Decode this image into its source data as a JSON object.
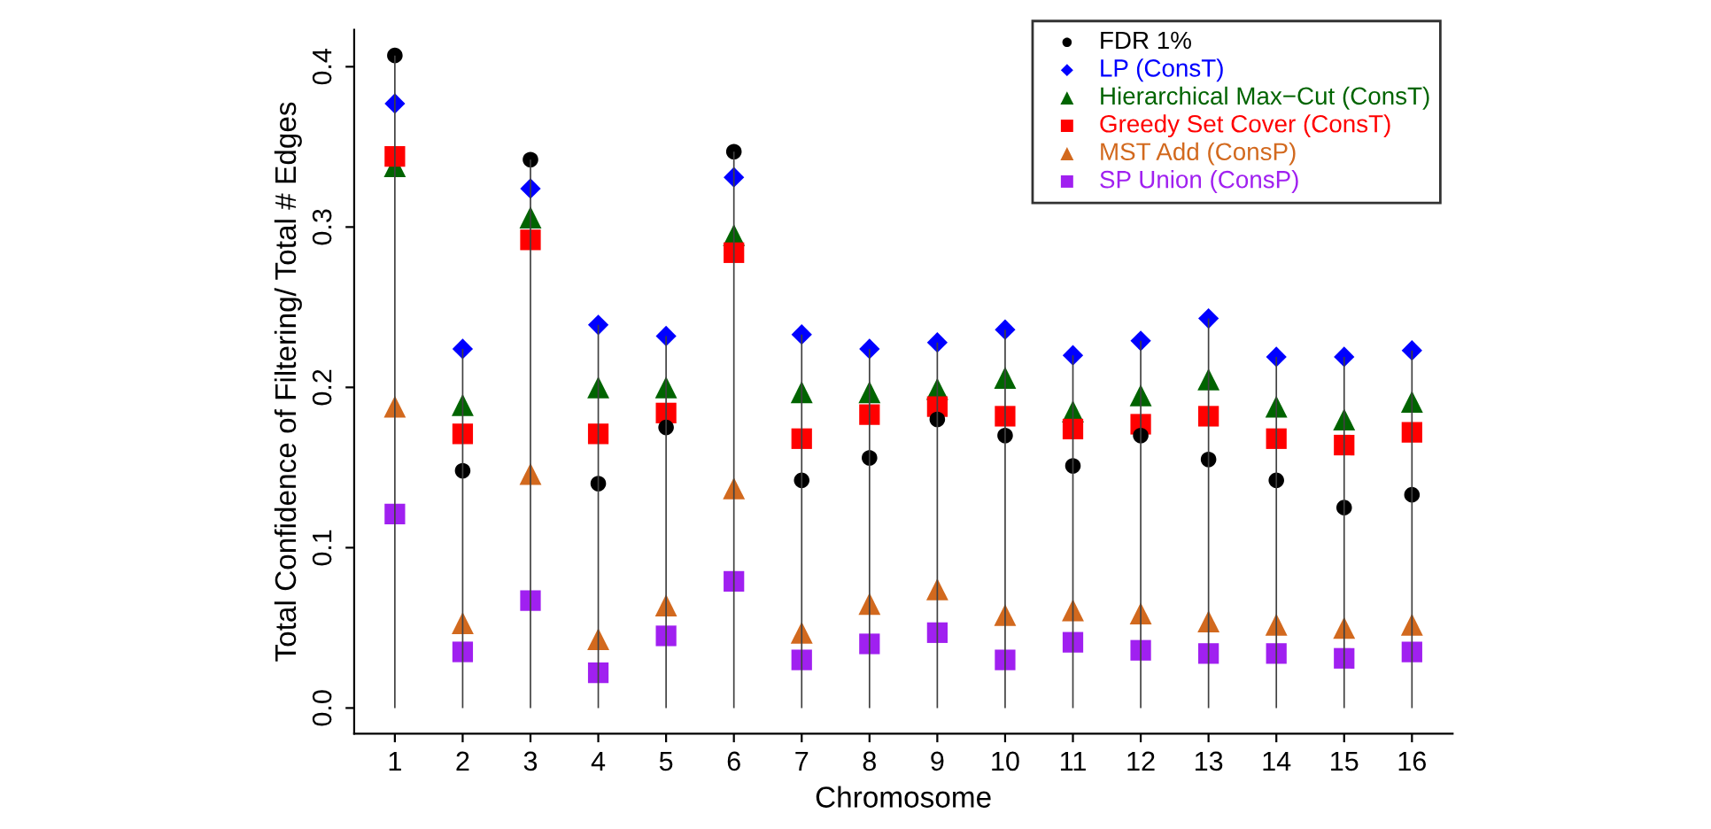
{
  "chart_data": {
    "type": "scatter",
    "xlabel": "Chromosome",
    "ylabel": "Total Confidence of Filtering/ Total # Edges",
    "categories": [
      "1",
      "2",
      "3",
      "4",
      "5",
      "6",
      "7",
      "8",
      "9",
      "10",
      "11",
      "12",
      "13",
      "14",
      "15",
      "16"
    ],
    "ylim": [
      -0.016,
      0.423
    ],
    "yticks": [
      {
        "value": 0,
        "label": "0.0"
      },
      0.1,
      0.2,
      0.3,
      0.4
    ],
    "grid": false,
    "legend": "top right",
    "series": [
      {
        "type": "bar",
        "color": "#404040",
        "values": [
          0.407,
          0.224,
          0.342,
          0.239,
          0.232,
          0.347,
          0.233,
          0.224,
          0.228,
          0.236,
          0.22,
          0.229,
          0.243,
          0.219,
          0.219,
          0.223
        ]
      },
      {
        "name": "FDR 1%",
        "color": "#000000",
        "marker": "circle",
        "values": [
          0.407,
          0.148,
          0.342,
          0.14,
          0.175,
          0.347,
          0.142,
          0.156,
          0.18,
          0.17,
          0.151,
          0.17,
          0.155,
          0.142,
          0.125,
          0.133
        ]
      },
      {
        "name": "LP (ConsT)",
        "color": "#0000ff",
        "marker": "diamond",
        "values": [
          0.377,
          0.224,
          0.324,
          0.239,
          0.232,
          0.331,
          0.233,
          0.224,
          0.228,
          0.236,
          0.22,
          0.229,
          0.243,
          0.219,
          0.219,
          0.223
        ]
      },
      {
        "name": "Hierarchical Max−Cut (ConsT)",
        "color": "#006400",
        "marker": "triangle",
        "values": [
          0.338,
          0.189,
          0.306,
          0.2,
          0.2,
          0.295,
          0.197,
          0.197,
          0.199,
          0.206,
          0.185,
          0.195,
          0.205,
          0.188,
          0.18,
          0.191
        ]
      },
      {
        "name": "Greedy Set Cover (ConsT)",
        "color": "#ff0000",
        "marker": "square",
        "values": [
          0.344,
          0.171,
          0.292,
          0.171,
          0.184,
          0.284,
          0.168,
          0.183,
          0.188,
          0.182,
          0.174,
          0.177,
          0.182,
          0.168,
          0.164,
          0.172
        ]
      },
      {
        "name": "MST Add (ConsP)",
        "color": "#d2691e",
        "marker": "triangle",
        "values": [
          0.188,
          0.053,
          0.146,
          0.043,
          0.064,
          0.137,
          0.047,
          0.065,
          0.074,
          0.058,
          0.061,
          0.059,
          0.054,
          0.052,
          0.05,
          0.052
        ]
      },
      {
        "name": "SP Union (ConsP)",
        "color": "#a020f0",
        "marker": "square",
        "values": [
          0.121,
          0.035,
          0.067,
          0.022,
          0.045,
          0.079,
          0.03,
          0.04,
          0.047,
          0.03,
          0.041,
          0.036,
          0.034,
          0.034,
          0.031,
          0.035
        ]
      }
    ]
  }
}
